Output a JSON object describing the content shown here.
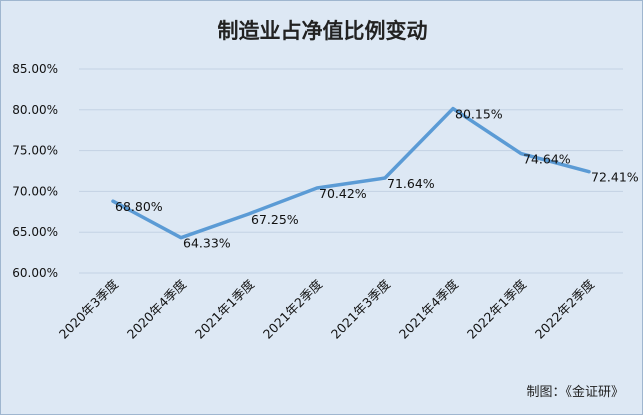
{
  "chart_data": {
    "type": "line",
    "title": "制造业占净值比例变动",
    "source": "制图：《金证研》",
    "categories": [
      "2020年3季度",
      "2020年4季度",
      "2021年1季度",
      "2021年2季度",
      "2021年3季度",
      "2021年4季度",
      "2022年1季度",
      "2022年2季度"
    ],
    "series": [
      {
        "values": [
          68.8,
          64.33,
          67.25,
          70.42,
          71.64,
          80.15,
          74.64,
          72.41
        ]
      }
    ],
    "data_labels": [
      "68.80%",
      "64.33%",
      "67.25%",
      "70.42%",
      "71.64%",
      "80.15%",
      "74.64%",
      "72.41%"
    ],
    "y_ticks": [
      "60.00%",
      "65.00%",
      "70.00%",
      "75.00%",
      "80.00%",
      "85.00%"
    ],
    "ylim": [
      60,
      85
    ],
    "grid": true,
    "colors": {
      "line": "#5b9bd5",
      "grid": "#c3d2e3",
      "background": "#dde8f4"
    }
  }
}
